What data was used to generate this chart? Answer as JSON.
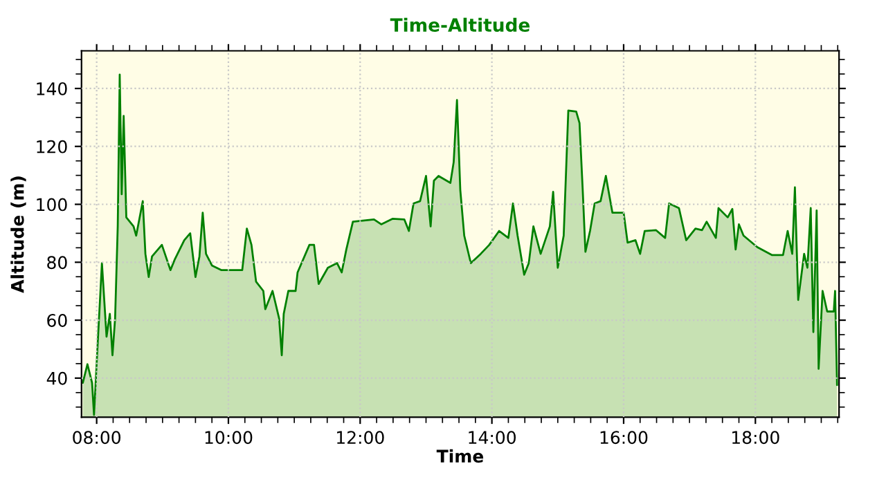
{
  "chart_data": {
    "type": "area",
    "title": "Time-Altitude",
    "xlabel": "Time",
    "ylabel": "Altitude (m)",
    "xlim": [
      7.77,
      19.27
    ],
    "ylim": [
      26.5,
      153
    ],
    "xticks": [
      {
        "value": 8,
        "label": "08:00"
      },
      {
        "value": 10,
        "label": "10:00"
      },
      {
        "value": 12,
        "label": "12:00"
      },
      {
        "value": 14,
        "label": "14:00"
      },
      {
        "value": 16,
        "label": "16:00"
      },
      {
        "value": 18,
        "label": "18:00"
      }
    ],
    "yticks": [
      40,
      60,
      80,
      100,
      120,
      140
    ],
    "grid": true,
    "legend": false,
    "line_style": "solid",
    "series": [
      {
        "color": "#008000",
        "x": [
          7.79,
          7.86,
          7.93,
          7.96,
          8.01,
          8.08,
          8.15,
          8.2,
          8.24,
          8.28,
          8.32,
          8.35,
          8.38,
          8.41,
          8.45,
          8.56,
          8.6,
          8.7,
          8.74,
          8.79,
          8.84,
          8.99,
          9.12,
          9.19,
          9.33,
          9.42,
          9.5,
          9.56,
          9.61,
          9.66,
          9.75,
          9.89,
          10.21,
          10.28,
          10.35,
          10.42,
          10.53,
          10.56,
          10.67,
          10.77,
          10.81,
          10.84,
          10.91,
          11.02,
          11.05,
          11.23,
          11.3,
          11.37,
          11.51,
          11.65,
          11.72,
          11.79,
          11.89,
          12.21,
          12.32,
          12.49,
          12.67,
          12.74,
          12.81,
          12.91,
          13.0,
          13.07,
          13.12,
          13.19,
          13.37,
          13.42,
          13.47,
          13.52,
          13.58,
          13.68,
          13.83,
          13.96,
          14.11,
          14.25,
          14.32,
          14.39,
          14.49,
          14.56,
          14.63,
          14.74,
          14.88,
          14.93,
          15.0,
          15.09,
          15.16,
          15.28,
          15.33,
          15.38,
          15.42,
          15.49,
          15.56,
          15.65,
          15.73,
          15.83,
          16.0,
          16.06,
          16.18,
          16.25,
          16.32,
          16.49,
          16.63,
          16.69,
          16.84,
          16.95,
          17.09,
          17.19,
          17.26,
          17.4,
          17.44,
          17.58,
          17.65,
          17.7,
          17.75,
          17.82,
          18.03,
          18.25,
          18.42,
          18.49,
          18.56,
          18.6,
          18.65,
          18.74,
          18.79,
          18.84,
          18.88,
          18.93,
          18.96,
          19.02,
          19.09,
          19.19,
          19.21,
          19.24
        ],
        "values": [
          38.4,
          44.8,
          38.4,
          27.3,
          49.5,
          79.7,
          54.3,
          62.2,
          47.9,
          60.6,
          92.4,
          144.8,
          103.5,
          130.5,
          95.5,
          92.4,
          89.2,
          101.1,
          82.9,
          74.9,
          82.0,
          86.0,
          77.3,
          81.2,
          87.6,
          90.0,
          74.9,
          82.0,
          97.1,
          82.9,
          78.9,
          77.3,
          77.3,
          91.6,
          86.0,
          73.3,
          70.1,
          63.8,
          70.1,
          60.6,
          47.9,
          62.2,
          70.1,
          70.1,
          76.5,
          86.0,
          86.0,
          72.5,
          78.1,
          79.7,
          76.5,
          84.4,
          94.0,
          94.8,
          93.1,
          95.0,
          94.8,
          90.8,
          100.3,
          101.1,
          109.8,
          92.4,
          108.2,
          109.8,
          107.4,
          114.6,
          136.0,
          105.0,
          89.2,
          79.7,
          82.9,
          86.0,
          90.8,
          88.4,
          100.3,
          89.2,
          75.7,
          79.7,
          92.4,
          82.9,
          92.4,
          104.3,
          78.1,
          89.2,
          132.4,
          132.0,
          128.1,
          104.3,
          83.6,
          90.8,
          100.3,
          101.1,
          109.8,
          97.1,
          97.1,
          86.8,
          87.6,
          82.9,
          90.8,
          91.1,
          88.4,
          100.3,
          98.7,
          87.6,
          91.6,
          91.1,
          94.0,
          88.4,
          98.7,
          95.5,
          98.4,
          84.4,
          93.1,
          89.2,
          85.2,
          82.5,
          82.5,
          90.8,
          82.9,
          105.9,
          67.0,
          82.9,
          78.1,
          98.7,
          55.9,
          97.9,
          43.2,
          70.1,
          63.0,
          63.0,
          70.1,
          37.6
        ]
      }
    ]
  }
}
